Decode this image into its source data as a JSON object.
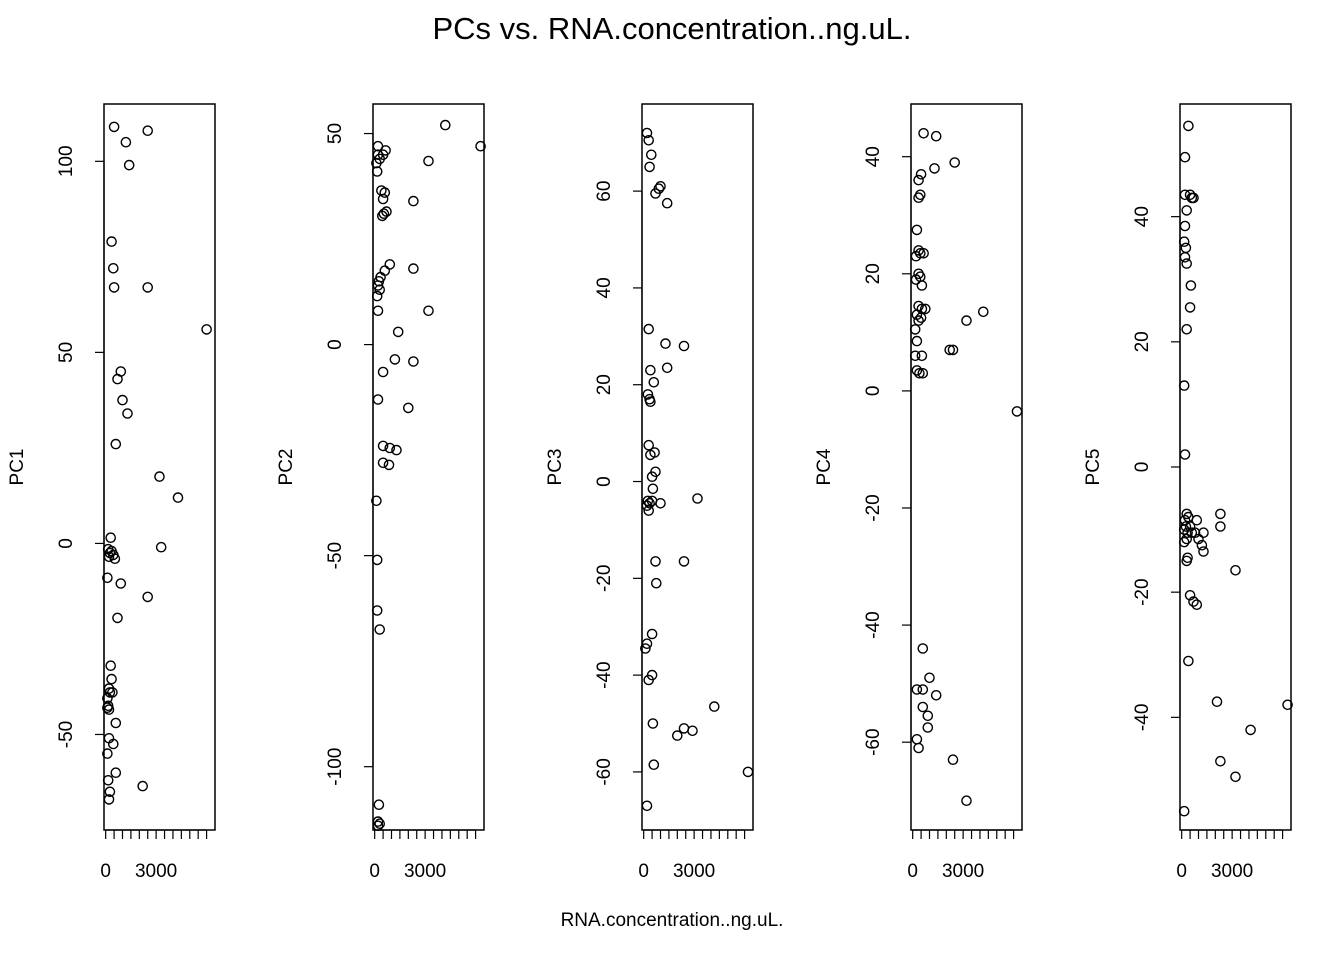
{
  "title": "PCs vs. RNA.concentration..ng.uL.",
  "xlabel": "RNA.concentration..ng.uL.",
  "chart_data": [
    {
      "type": "scatter",
      "ylabel": "PC1",
      "xlim": [
        -100,
        6500
      ],
      "ylim": [
        -75,
        115
      ],
      "xticks": [
        0,
        500,
        1000,
        1500,
        2000,
        2500,
        3000,
        3500,
        4000,
        4500,
        5000,
        5500,
        6000
      ],
      "xticklabels": [
        {
          "v": 0,
          "t": "0"
        },
        {
          "v": 3000,
          "t": "3000"
        }
      ],
      "yticks": [
        {
          "v": -50,
          "t": "-50"
        },
        {
          "v": 0,
          "t": "0"
        },
        {
          "v": 50,
          "t": "50"
        },
        {
          "v": 100,
          "t": "100"
        }
      ],
      "points": [
        [
          500,
          109
        ],
        [
          2500,
          108
        ],
        [
          1200,
          105
        ],
        [
          1400,
          99
        ],
        [
          350,
          79
        ],
        [
          450,
          72
        ],
        [
          500,
          67
        ],
        [
          2500,
          67
        ],
        [
          6000,
          56
        ],
        [
          900,
          45
        ],
        [
          700,
          43
        ],
        [
          1000,
          37.5
        ],
        [
          1300,
          34
        ],
        [
          600,
          26
        ],
        [
          3200,
          17.5
        ],
        [
          4300,
          12
        ],
        [
          300,
          1.5
        ],
        [
          150,
          -1.5
        ],
        [
          250,
          -2.5
        ],
        [
          350,
          -2
        ],
        [
          450,
          -3
        ],
        [
          200,
          -3.5
        ],
        [
          550,
          -4
        ],
        [
          3300,
          -1
        ],
        [
          100,
          -9
        ],
        [
          900,
          -10.5
        ],
        [
          2500,
          -14
        ],
        [
          700,
          -19.5
        ],
        [
          300,
          -32
        ],
        [
          350,
          -35.5
        ],
        [
          200,
          -38
        ],
        [
          250,
          -39
        ],
        [
          400,
          -39
        ],
        [
          100,
          -40.5
        ],
        [
          150,
          -42.5
        ],
        [
          100,
          -43
        ],
        [
          200,
          -43.5
        ],
        [
          600,
          -47
        ],
        [
          200,
          -51
        ],
        [
          450,
          -52.5
        ],
        [
          100,
          -55
        ],
        [
          600,
          -60
        ],
        [
          150,
          -62
        ],
        [
          2200,
          -63.5
        ],
        [
          250,
          -65
        ],
        [
          200,
          -67
        ]
      ]
    },
    {
      "type": "scatter",
      "ylabel": "PC2",
      "xlim": [
        -100,
        6500
      ],
      "ylim": [
        -115,
        57
      ],
      "xticks": [
        0,
        500,
        1000,
        1500,
        2000,
        2500,
        3000,
        3500,
        4000,
        4500,
        5000,
        5500,
        6000
      ],
      "xticklabels": [
        {
          "v": 0,
          "t": "0"
        },
        {
          "v": 3000,
          "t": "3000"
        }
      ],
      "yticks": [
        {
          "v": -100,
          "t": "-100"
        },
        {
          "v": -50,
          "t": "-50"
        },
        {
          "v": 0,
          "t": "0"
        },
        {
          "v": 50,
          "t": "50"
        }
      ],
      "points": [
        [
          4200,
          52
        ],
        [
          6300,
          47
        ],
        [
          200,
          47
        ],
        [
          200,
          45
        ],
        [
          500,
          45
        ],
        [
          650,
          46
        ],
        [
          300,
          44
        ],
        [
          100,
          43
        ],
        [
          150,
          41
        ],
        [
          3200,
          43.5
        ],
        [
          400,
          36.5
        ],
        [
          600,
          36
        ],
        [
          500,
          34.5
        ],
        [
          2300,
          34
        ],
        [
          550,
          31
        ],
        [
          700,
          31.5
        ],
        [
          450,
          30.5
        ],
        [
          900,
          19
        ],
        [
          2300,
          18
        ],
        [
          600,
          17.5
        ],
        [
          350,
          16
        ],
        [
          250,
          15
        ],
        [
          200,
          14
        ],
        [
          300,
          13
        ],
        [
          150,
          11.5
        ],
        [
          3200,
          8
        ],
        [
          200,
          8
        ],
        [
          1400,
          3
        ],
        [
          2300,
          -4
        ],
        [
          1200,
          -3.5
        ],
        [
          500,
          -6.5
        ],
        [
          200,
          -13
        ],
        [
          2000,
          -15
        ],
        [
          500,
          -24
        ],
        [
          900,
          -24.5
        ],
        [
          1300,
          -25
        ],
        [
          500,
          -28
        ],
        [
          850,
          -28.5
        ],
        [
          100,
          -37
        ],
        [
          150,
          -51
        ],
        [
          150,
          -63
        ],
        [
          300,
          -67.5
        ],
        [
          250,
          -109
        ],
        [
          200,
          -113
        ],
        [
          300,
          -113.5
        ],
        [
          200,
          -114
        ]
      ]
    },
    {
      "type": "scatter",
      "ylabel": "PC3",
      "xlim": [
        -100,
        6500
      ],
      "ylim": [
        -72,
        78
      ],
      "xticks": [
        0,
        500,
        1000,
        1500,
        2000,
        2500,
        3000,
        3500,
        4000,
        4500,
        5000,
        5500,
        6000
      ],
      "xticklabels": [
        {
          "v": 0,
          "t": "0"
        },
        {
          "v": 3000,
          "t": "3000"
        }
      ],
      "yticks": [
        {
          "v": -60,
          "t": "-60"
        },
        {
          "v": -40,
          "t": "-40"
        },
        {
          "v": -20,
          "t": "-20"
        },
        {
          "v": 0,
          "t": "0"
        },
        {
          "v": 20,
          "t": "20"
        },
        {
          "v": 40,
          "t": "40"
        },
        {
          "v": 60,
          "t": "60"
        }
      ],
      "points": [
        [
          200,
          72
        ],
        [
          300,
          70.5
        ],
        [
          450,
          67.5
        ],
        [
          350,
          65
        ],
        [
          1000,
          61
        ],
        [
          900,
          60.5
        ],
        [
          700,
          59.5
        ],
        [
          1400,
          57.5
        ],
        [
          300,
          31.5
        ],
        [
          1300,
          28.5
        ],
        [
          2400,
          28
        ],
        [
          1400,
          23.5
        ],
        [
          400,
          23
        ],
        [
          600,
          20.5
        ],
        [
          250,
          18
        ],
        [
          350,
          17
        ],
        [
          400,
          16.5
        ],
        [
          300,
          7.5
        ],
        [
          650,
          6
        ],
        [
          400,
          5.5
        ],
        [
          700,
          2
        ],
        [
          500,
          1
        ],
        [
          550,
          -1.5
        ],
        [
          250,
          -4
        ],
        [
          350,
          -4.5
        ],
        [
          500,
          -4
        ],
        [
          200,
          -5
        ],
        [
          1000,
          -4.5
        ],
        [
          3200,
          -3.5
        ],
        [
          300,
          -6
        ],
        [
          700,
          -16.5
        ],
        [
          2400,
          -16.5
        ],
        [
          750,
          -21
        ],
        [
          500,
          -31.5
        ],
        [
          200,
          -33.5
        ],
        [
          100,
          -34.5
        ],
        [
          500,
          -40
        ],
        [
          300,
          -41
        ],
        [
          550,
          -50
        ],
        [
          2400,
          -51
        ],
        [
          2900,
          -51.5
        ],
        [
          2000,
          -52.5
        ],
        [
          4200,
          -46.5
        ],
        [
          600,
          -58.5
        ],
        [
          6200,
          -60
        ],
        [
          200,
          -67
        ]
      ]
    },
    {
      "type": "scatter",
      "ylabel": "PC4",
      "xlim": [
        -100,
        6500
      ],
      "ylim": [
        -75,
        49
      ],
      "xticks": [
        0,
        500,
        1000,
        1500,
        2000,
        2500,
        3000,
        3500,
        4000,
        4500,
        5000,
        5500,
        6000
      ],
      "xticklabels": [
        {
          "v": 0,
          "t": "0"
        },
        {
          "v": 3000,
          "t": "3000"
        }
      ],
      "yticks": [
        {
          "v": -60,
          "t": "-60"
        },
        {
          "v": -40,
          "t": "-40"
        },
        {
          "v": -20,
          "t": "-20"
        },
        {
          "v": 0,
          "t": "0"
        },
        {
          "v": 20,
          "t": "20"
        },
        {
          "v": 40,
          "t": "40"
        }
      ],
      "points": [
        [
          650,
          44
        ],
        [
          1400,
          43.5
        ],
        [
          2500,
          39
        ],
        [
          1300,
          38
        ],
        [
          500,
          37
        ],
        [
          350,
          36
        ],
        [
          450,
          33.5
        ],
        [
          350,
          33
        ],
        [
          250,
          27.5
        ],
        [
          350,
          24
        ],
        [
          450,
          23.5
        ],
        [
          200,
          23
        ],
        [
          650,
          23.5
        ],
        [
          350,
          20
        ],
        [
          450,
          19.5
        ],
        [
          200,
          19
        ],
        [
          550,
          18
        ],
        [
          350,
          14.5
        ],
        [
          550,
          14
        ],
        [
          750,
          14
        ],
        [
          250,
          13
        ],
        [
          500,
          12.5
        ],
        [
          350,
          12
        ],
        [
          4200,
          13.5
        ],
        [
          3200,
          12
        ],
        [
          150,
          10.5
        ],
        [
          250,
          8.5
        ],
        [
          2200,
          7
        ],
        [
          2400,
          7
        ],
        [
          150,
          6
        ],
        [
          550,
          6
        ],
        [
          250,
          3.5
        ],
        [
          400,
          3
        ],
        [
          600,
          3
        ],
        [
          6200,
          -3.5
        ],
        [
          600,
          -44
        ],
        [
          250,
          -51
        ],
        [
          600,
          -51
        ],
        [
          1000,
          -49
        ],
        [
          1400,
          -52
        ],
        [
          600,
          -54
        ],
        [
          900,
          -55.5
        ],
        [
          900,
          -57.5
        ],
        [
          250,
          -59.5
        ],
        [
          350,
          -61
        ],
        [
          2400,
          -63
        ],
        [
          3200,
          -70
        ]
      ]
    },
    {
      "type": "scatter",
      "ylabel": "PC5",
      "xlim": [
        -100,
        6500
      ],
      "ylim": [
        -58,
        58
      ],
      "xticks": [
        0,
        500,
        1000,
        1500,
        2000,
        2500,
        3000,
        3500,
        4000,
        4500,
        5000,
        5500,
        6000
      ],
      "xticklabels": [
        {
          "v": 0,
          "t": "0"
        },
        {
          "v": 3000,
          "t": "3000"
        }
      ],
      "yticks": [
        {
          "v": -40,
          "t": "-40"
        },
        {
          "v": -20,
          "t": "-20"
        },
        {
          "v": 0,
          "t": "0"
        },
        {
          "v": 20,
          "t": "20"
        },
        {
          "v": 40,
          "t": "40"
        }
      ],
      "points": [
        [
          400,
          54.5
        ],
        [
          200,
          49.5
        ],
        [
          200,
          43.5
        ],
        [
          500,
          43.5
        ],
        [
          600,
          43
        ],
        [
          700,
          43
        ],
        [
          300,
          41
        ],
        [
          200,
          38.5
        ],
        [
          150,
          36
        ],
        [
          250,
          35
        ],
        [
          200,
          33.5
        ],
        [
          300,
          32.5
        ],
        [
          550,
          29
        ],
        [
          500,
          25.5
        ],
        [
          300,
          22
        ],
        [
          150,
          13
        ],
        [
          200,
          2
        ],
        [
          300,
          -7.5
        ],
        [
          200,
          -8.5
        ],
        [
          400,
          -8
        ],
        [
          900,
          -8.5
        ],
        [
          2300,
          -7.5
        ],
        [
          250,
          -9.5
        ],
        [
          500,
          -9.5
        ],
        [
          150,
          -10
        ],
        [
          350,
          -10.5
        ],
        [
          600,
          -10.5
        ],
        [
          800,
          -10.5
        ],
        [
          2300,
          -9.5
        ],
        [
          1300,
          -10.5
        ],
        [
          300,
          -11.5
        ],
        [
          150,
          -12
        ],
        [
          1000,
          -11.5
        ],
        [
          1200,
          -12.5
        ],
        [
          1300,
          -13.5
        ],
        [
          350,
          -14.5
        ],
        [
          300,
          -15
        ],
        [
          3200,
          -16.5
        ],
        [
          500,
          -20.5
        ],
        [
          700,
          -21.5
        ],
        [
          900,
          -22
        ],
        [
          400,
          -31
        ],
        [
          2100,
          -37.5
        ],
        [
          6300,
          -38
        ],
        [
          4100,
          -42
        ],
        [
          2300,
          -47
        ],
        [
          3200,
          -49.5
        ],
        [
          150,
          -55
        ]
      ]
    }
  ]
}
